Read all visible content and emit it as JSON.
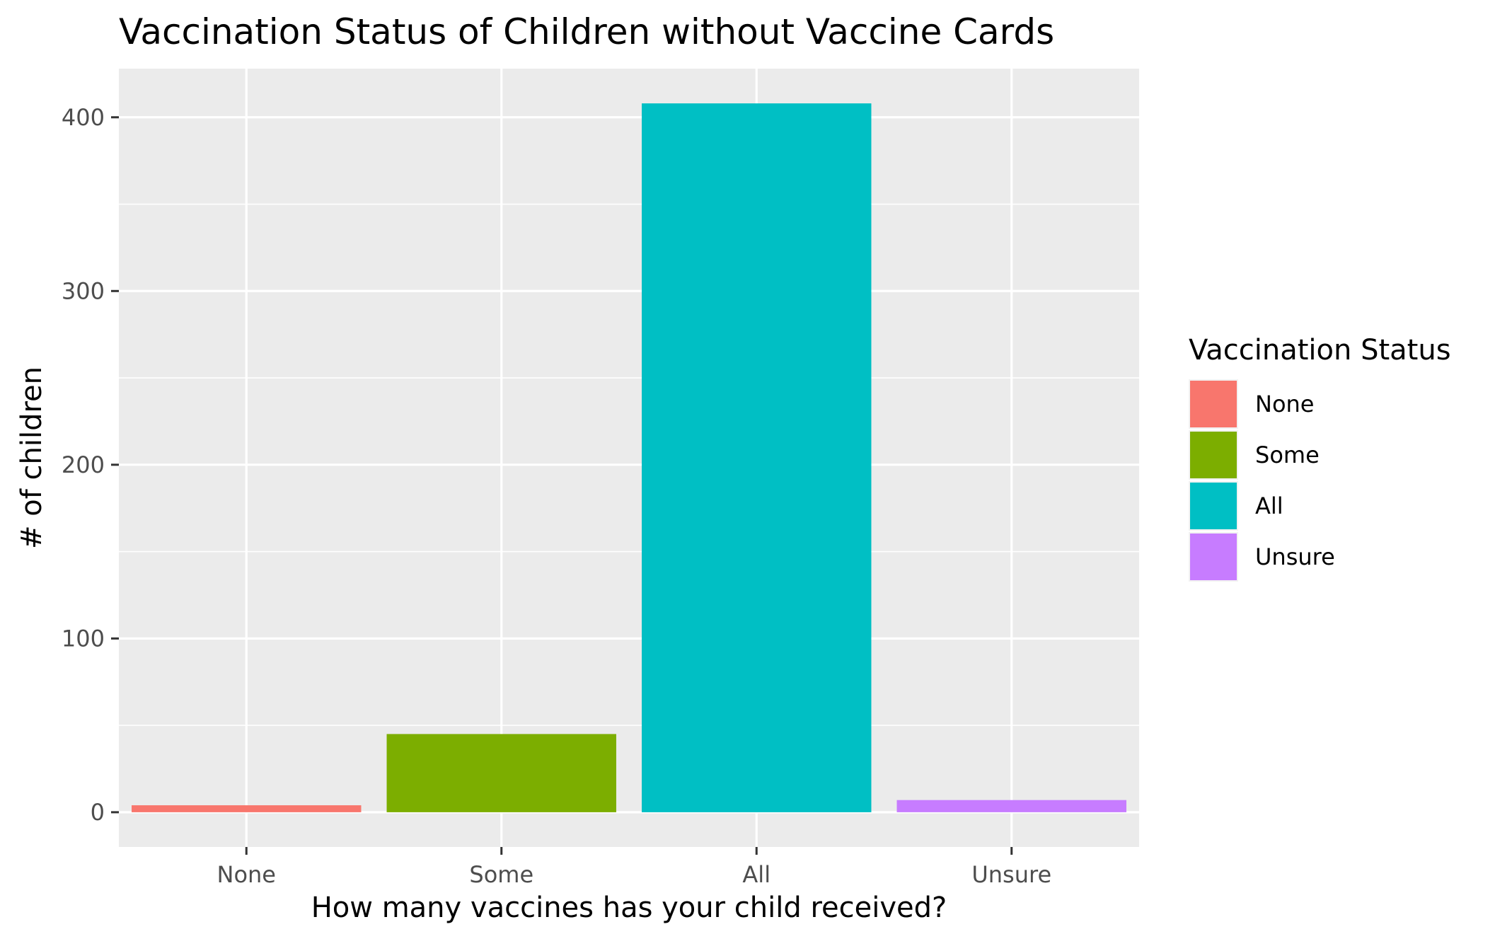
{
  "chart_data": {
    "type": "bar",
    "title": "Vaccination Status of Children without Vaccine Cards",
    "xlabel": "How many vaccines has your child received?",
    "ylabel": "# of children",
    "categories": [
      "None",
      "Some",
      "All",
      "Unsure"
    ],
    "values": [
      4,
      45,
      408,
      7
    ],
    "colors": [
      "#F8766D",
      "#7CAE00",
      "#00BFC4",
      "#C77CFF"
    ],
    "ylim": [
      -20,
      428
    ],
    "yticks": [
      0,
      100,
      200,
      300,
      400
    ],
    "ytick_labels": [
      "0",
      "100",
      "200",
      "300",
      "400"
    ],
    "grid": true,
    "legend": {
      "title": "Vaccination Status",
      "placement": "right",
      "entries": [
        "None",
        "Some",
        "All",
        "Unsure"
      ]
    }
  }
}
